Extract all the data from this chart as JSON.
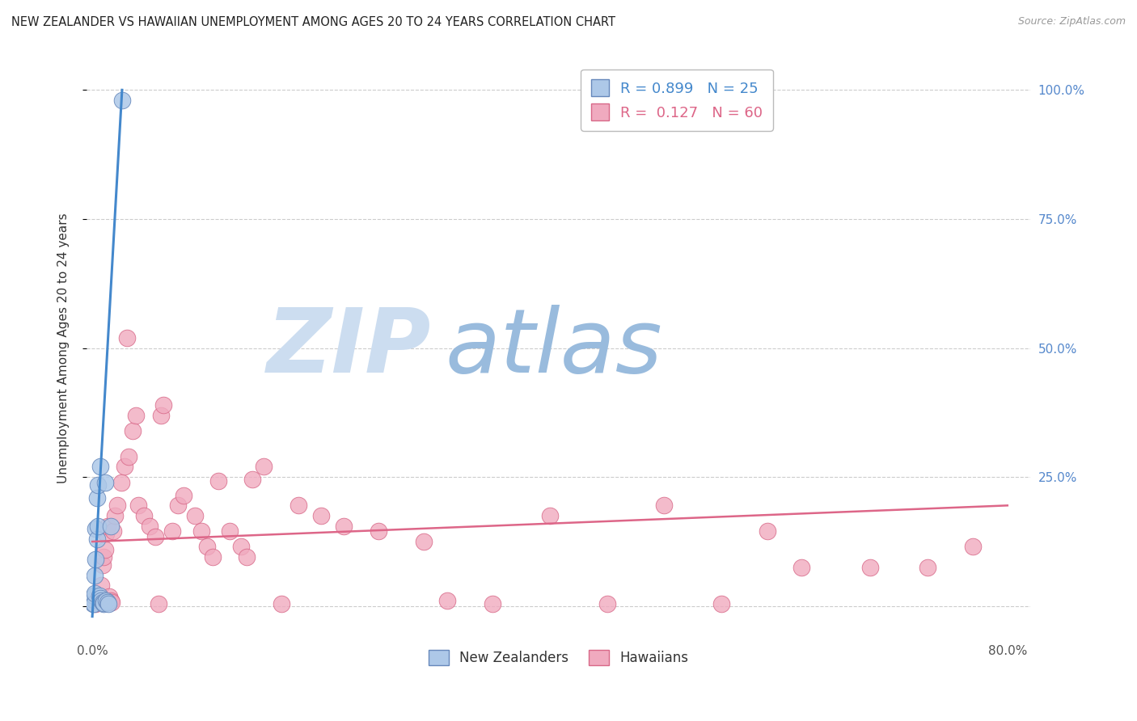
{
  "title": "NEW ZEALANDER VS HAWAIIAN UNEMPLOYMENT AMONG AGES 20 TO 24 YEARS CORRELATION CHART",
  "source": "Source: ZipAtlas.com",
  "ylabel": "Unemployment Among Ages 20 to 24 years",
  "xlim": [
    -0.005,
    0.82
  ],
  "ylim": [
    -0.06,
    1.06
  ],
  "ytick_vals": [
    0.0,
    0.25,
    0.5,
    0.75,
    1.0
  ],
  "xtick_vals": [
    0.0,
    0.2,
    0.4,
    0.6,
    0.8
  ],
  "right_ytick_labels": [
    "",
    "25.0%",
    "50.0%",
    "75.0%",
    "100.0%"
  ],
  "x_bottom_labels": [
    "0.0%",
    "",
    "",
    "",
    "80.0%"
  ],
  "grid_color": "#cccccc",
  "nz_face": "#adc8e8",
  "nz_edge": "#6688bb",
  "hi_face": "#f0aabf",
  "hi_edge": "#d86888",
  "nz_line": "#4488cc",
  "hi_line": "#dd6688",
  "nz_R": "0.899",
  "nz_N": "25",
  "hi_R": "0.127",
  "hi_N": "60",
  "tick_color": "#5588cc",
  "title_color": "#222222",
  "source_color": "#999999",
  "ylabel_color": "#333333",
  "watermark_zip_color": "#ccddf0",
  "watermark_atlas_color": "#99bbdd",
  "nz_x": [
    0.0005,
    0.001,
    0.0012,
    0.0015,
    0.002,
    0.002,
    0.003,
    0.003,
    0.004,
    0.004,
    0.005,
    0.005,
    0.006,
    0.007,
    0.007,
    0.008,
    0.009,
    0.01,
    0.01,
    0.011,
    0.012,
    0.013,
    0.014,
    0.016,
    0.026
  ],
  "nz_y": [
    0.004,
    0.012,
    0.02,
    0.005,
    0.025,
    0.06,
    0.09,
    0.15,
    0.13,
    0.21,
    0.155,
    0.235,
    0.02,
    0.015,
    0.27,
    0.01,
    0.008,
    0.005,
    0.006,
    0.24,
    0.01,
    0.008,
    0.005,
    0.155,
    0.98
  ],
  "hi_x": [
    0.003,
    0.004,
    0.005,
    0.006,
    0.007,
    0.008,
    0.009,
    0.01,
    0.011,
    0.012,
    0.013,
    0.015,
    0.016,
    0.017,
    0.018,
    0.02,
    0.022,
    0.025,
    0.028,
    0.03,
    0.032,
    0.035,
    0.038,
    0.04,
    0.045,
    0.05,
    0.055,
    0.058,
    0.06,
    0.062,
    0.07,
    0.075,
    0.08,
    0.09,
    0.095,
    0.1,
    0.105,
    0.11,
    0.12,
    0.13,
    0.135,
    0.14,
    0.15,
    0.165,
    0.18,
    0.2,
    0.22,
    0.25,
    0.29,
    0.31,
    0.35,
    0.4,
    0.45,
    0.5,
    0.55,
    0.59,
    0.62,
    0.68,
    0.73,
    0.77
  ],
  "hi_y": [
    0.004,
    0.008,
    0.01,
    0.012,
    0.015,
    0.04,
    0.08,
    0.095,
    0.11,
    0.14,
    0.155,
    0.018,
    0.01,
    0.008,
    0.145,
    0.175,
    0.195,
    0.24,
    0.27,
    0.52,
    0.29,
    0.34,
    0.37,
    0.195,
    0.175,
    0.155,
    0.135,
    0.005,
    0.37,
    0.39,
    0.145,
    0.195,
    0.215,
    0.175,
    0.145,
    0.115,
    0.095,
    0.242,
    0.145,
    0.115,
    0.095,
    0.245,
    0.27,
    0.005,
    0.195,
    0.175,
    0.155,
    0.145,
    0.125,
    0.01,
    0.005,
    0.175,
    0.005,
    0.195,
    0.005,
    0.145,
    0.075,
    0.075,
    0.075,
    0.115
  ],
  "hi_line_x0": 0.0,
  "hi_line_y0": 0.125,
  "hi_line_x1": 0.8,
  "hi_line_y1": 0.195,
  "nz_line_x0": 0.0,
  "nz_line_y0": -0.02,
  "nz_line_x1": 0.026,
  "nz_line_y1": 1.0
}
